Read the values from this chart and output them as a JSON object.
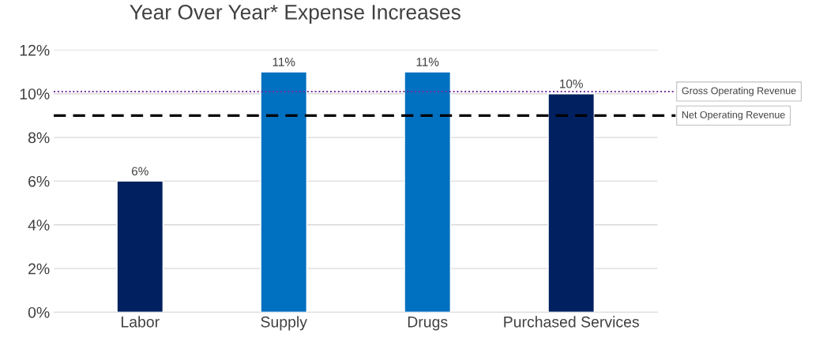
{
  "chart_data": {
    "type": "bar",
    "title": "Year Over Year* Expense Increases",
    "categories": [
      "Labor",
      "Supply",
      "Drugs",
      "Purchased Services"
    ],
    "values": [
      6,
      11,
      11,
      10
    ],
    "colors": [
      "#002060",
      "#0070c0",
      "#0070c0",
      "#002060"
    ],
    "value_labels": [
      "6%",
      "11%",
      "11%",
      "10%"
    ],
    "ylim": [
      0,
      12
    ],
    "yticks": [
      {
        "value": 0,
        "label": "0%"
      },
      {
        "value": 2,
        "label": "2%"
      },
      {
        "value": 4,
        "label": "4%"
      },
      {
        "value": 6,
        "label": "6%"
      },
      {
        "value": 8,
        "label": "8%"
      },
      {
        "value": 10,
        "label": "10%"
      },
      {
        "value": 12,
        "label": "12%"
      }
    ],
    "grid": "y",
    "ref_lines": [
      {
        "axis": "y",
        "value": 10.1,
        "label": "Gross Operating Revenue",
        "color": "#7030a0",
        "line_style": "dotted"
      },
      {
        "axis": "y",
        "value": 9,
        "label": "Net Operating Revenue",
        "color": "#000000",
        "line_style": "dashed"
      }
    ]
  }
}
